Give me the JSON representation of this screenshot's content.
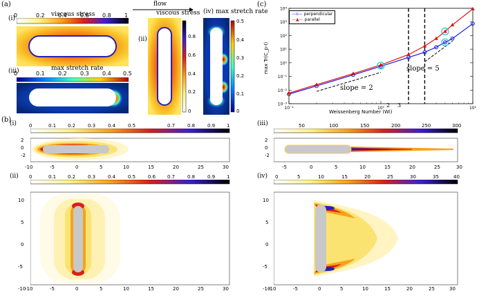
{
  "panel_a": {
    "label": "(a)",
    "flow_label": "flow",
    "i": {
      "label": "(i)",
      "title": "viscous stress",
      "ticks": [
        "0",
        "0.2",
        "0.4",
        "0.6",
        "0.8",
        "1"
      ]
    },
    "iii": {
      "label": "(iii)",
      "title": "max stretch rate",
      "ticks": [
        "0",
        "0.1",
        "0.2",
        "0.3",
        "0.4",
        "0.5"
      ]
    },
    "ii": {
      "label": "(ii)",
      "title": "viscous stress",
      "ticks": [
        "0",
        "0.2",
        "0.4",
        "0.6",
        "0.8"
      ]
    },
    "iv": {
      "label": "(iv)",
      "title": "max stretch rate",
      "ticks": [
        "0",
        "0.1",
        "0.2",
        "0.3",
        "0.4",
        "0.5"
      ]
    }
  },
  "panel_c": {
    "label": "(c)",
    "legend": [
      "perpendicular",
      "parallel"
    ],
    "xlabel": "Weissenberg Number (Wi)",
    "ylabel": "max Tr(C_p-I)",
    "x_ticks": [
      "10⁻¹",
      "10⁰",
      "10¹"
    ],
    "y_ticks": [
      "10⁻³",
      "10⁻²",
      "10⁻¹",
      "10⁰",
      "10¹",
      "10²",
      "10³",
      "10⁴"
    ],
    "annotations": {
      "slope2": "slope = 2",
      "slope5": "slope = 5",
      "wi2": "2",
      "wi3": "3"
    }
  },
  "panel_b": {
    "label": "(b)",
    "i": {
      "label": "(i)",
      "cb_ticks": [
        "0",
        "0.1",
        "0.2",
        "0.3",
        "0.4",
        "0.5",
        "0.7",
        "0.8",
        "0.9",
        "1"
      ],
      "y_ticks": [
        "2",
        "0",
        "-2"
      ],
      "x_ticks": [
        "-10",
        "-5",
        "0",
        "5",
        "10",
        "15",
        "20",
        "25",
        "30"
      ]
    },
    "iii": {
      "label": "(iii)",
      "cb_ticks": [
        "50",
        "100",
        "150",
        "200",
        "250",
        "300"
      ],
      "y_ticks": [
        "2",
        "0",
        "-2"
      ],
      "x_ticks": [
        "-5",
        "0",
        "5",
        "10",
        "15",
        "20",
        "25",
        "30"
      ]
    },
    "ii": {
      "label": "(ii)",
      "cb_ticks": [
        "0",
        "0.1",
        "0.2",
        "0.3",
        "0.4",
        "0.5",
        "0.6",
        "0.7",
        "0.8",
        "0.9",
        "1"
      ],
      "y_ticks": [
        "10",
        "5",
        "0",
        "-5",
        "-10"
      ],
      "x_ticks": [
        "-10",
        "-5",
        "0",
        "5",
        "10",
        "15",
        "20",
        "25",
        "30"
      ]
    },
    "iv": {
      "label": "(iv)",
      "cb_ticks": [
        "0",
        "5",
        "10",
        "15",
        "20",
        "25",
        "30",
        "35",
        "40"
      ],
      "y_ticks": [
        "10",
        "5",
        "0",
        "-5",
        "-10"
      ],
      "x_ticks": [
        "-10",
        "-5",
        "0",
        "5",
        "10",
        "15",
        "20",
        "25",
        "30"
      ]
    }
  },
  "chart_data": [
    {
      "type": "line",
      "xlabel": "Weissenberg Number (Wi)",
      "ylabel": "max Tr(C_p-I)",
      "xscale": "log",
      "yscale": "log",
      "xlim": [
        0.1,
        10
      ],
      "ylim": [
        0.001,
        10000
      ],
      "legend_position": "top-left",
      "series": [
        {
          "name": "perpendicular",
          "color": "#1a1adc",
          "x": [
            0.1,
            0.2,
            0.5,
            1,
            2,
            3,
            4,
            5,
            6,
            10
          ],
          "y": [
            0.005,
            0.02,
            0.13,
            0.55,
            2.5,
            6,
            14,
            32,
            60,
            750
          ]
        },
        {
          "name": "parallel",
          "color": "#e01010",
          "x": [
            0.1,
            0.2,
            0.5,
            1,
            2,
            3,
            4,
            5,
            6,
            10
          ],
          "y": [
            0.006,
            0.025,
            0.16,
            0.7,
            4,
            17,
            60,
            200,
            600,
            9000
          ]
        }
      ]
    }
  ]
}
